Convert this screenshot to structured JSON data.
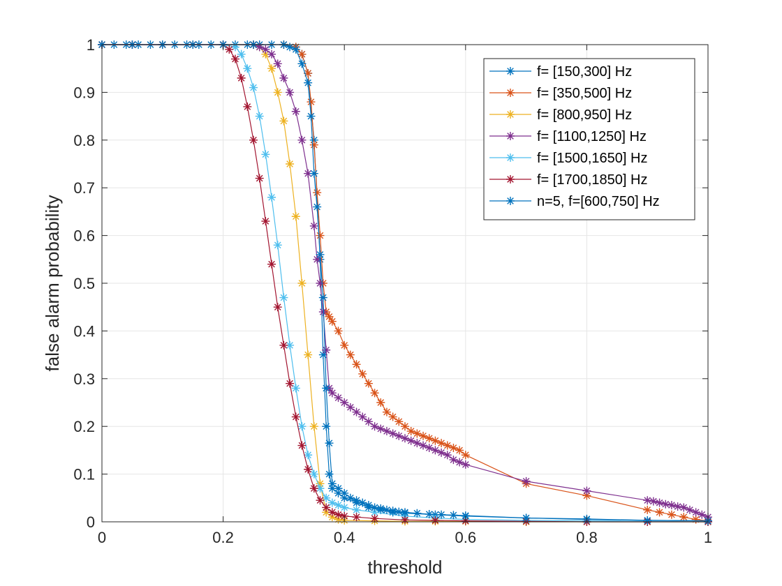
{
  "chart_data": {
    "type": "line",
    "title": "",
    "xlabel": "threshold",
    "ylabel": "false alarm probability",
    "xlim": [
      0,
      1
    ],
    "ylim": [
      0,
      1
    ],
    "xticks": [
      "0",
      "0.2",
      "0.4",
      "0.6",
      "0.8",
      "1"
    ],
    "yticks": [
      "0",
      "0.1",
      "0.2",
      "0.3",
      "0.4",
      "0.5",
      "0.6",
      "0.7",
      "0.8",
      "0.9",
      "1"
    ],
    "grid": true,
    "legend_position": "top-right",
    "marker": "asterisk",
    "series": [
      {
        "name": "f= [150,300] Hz",
        "color": "#0072BD",
        "x": [
          0,
          0.02,
          0.04,
          0.06,
          0.08,
          0.1,
          0.12,
          0.14,
          0.16,
          0.18,
          0.2,
          0.22,
          0.24,
          0.26,
          0.28,
          0.3,
          0.32,
          0.33,
          0.34,
          0.35,
          0.36,
          0.365,
          0.37,
          0.375,
          0.38,
          0.39,
          0.4,
          0.42,
          0.44,
          0.46,
          0.48,
          0.5,
          0.55,
          0.6,
          0.7,
          0.8,
          0.9,
          1.0
        ],
        "y": [
          1,
          1,
          1,
          1,
          1,
          1,
          1,
          1,
          1,
          1,
          1,
          1,
          1,
          1,
          1,
          1,
          0.995,
          0.98,
          0.94,
          0.8,
          0.55,
          0.35,
          0.2,
          0.1,
          0.07,
          0.06,
          0.05,
          0.04,
          0.03,
          0.025,
          0.02,
          0.018,
          0.015,
          0.012,
          0.008,
          0.005,
          0.003,
          0.002
        ]
      },
      {
        "name": "f= [350,500] Hz",
        "color": "#D95319",
        "x": [
          0,
          0.05,
          0.1,
          0.15,
          0.2,
          0.25,
          0.3,
          0.32,
          0.33,
          0.34,
          0.345,
          0.35,
          0.355,
          0.36,
          0.365,
          0.37,
          0.375,
          0.38,
          0.39,
          0.4,
          0.41,
          0.42,
          0.43,
          0.44,
          0.45,
          0.46,
          0.47,
          0.48,
          0.49,
          0.5,
          0.51,
          0.52,
          0.53,
          0.54,
          0.55,
          0.56,
          0.57,
          0.58,
          0.59,
          0.6,
          0.7,
          0.8,
          0.9,
          0.92,
          0.94,
          0.96,
          0.98,
          1.0
        ],
        "y": [
          1,
          1,
          1,
          1,
          1,
          1,
          1,
          0.995,
          0.98,
          0.94,
          0.88,
          0.79,
          0.69,
          0.6,
          0.5,
          0.44,
          0.43,
          0.42,
          0.4,
          0.37,
          0.35,
          0.33,
          0.31,
          0.29,
          0.27,
          0.25,
          0.23,
          0.22,
          0.21,
          0.2,
          0.19,
          0.185,
          0.18,
          0.175,
          0.17,
          0.165,
          0.16,
          0.155,
          0.15,
          0.14,
          0.08,
          0.055,
          0.025,
          0.02,
          0.015,
          0.01,
          0.005,
          0.002
        ]
      },
      {
        "name": "f= [800,950] Hz",
        "color": "#EDB120",
        "x": [
          0,
          0.05,
          0.1,
          0.15,
          0.2,
          0.25,
          0.26,
          0.27,
          0.28,
          0.29,
          0.3,
          0.31,
          0.32,
          0.33,
          0.34,
          0.35,
          0.36,
          0.37,
          0.38,
          0.39,
          0.4,
          0.45,
          0.5,
          0.55,
          0.6,
          0.7,
          0.8,
          0.9,
          1.0
        ],
        "y": [
          1,
          1,
          1,
          1,
          1,
          1,
          0.995,
          0.98,
          0.95,
          0.9,
          0.84,
          0.75,
          0.64,
          0.5,
          0.35,
          0.2,
          0.08,
          0.02,
          0.01,
          0.005,
          0.003,
          0.002,
          0.001,
          0.001,
          0.001,
          0.0,
          0.0,
          0.0,
          0.0
        ]
      },
      {
        "name": "f= [1100,1250] Hz",
        "color": "#7E2F8E",
        "x": [
          0,
          0.05,
          0.1,
          0.15,
          0.2,
          0.25,
          0.26,
          0.27,
          0.28,
          0.29,
          0.3,
          0.31,
          0.32,
          0.33,
          0.34,
          0.35,
          0.355,
          0.36,
          0.365,
          0.37,
          0.375,
          0.38,
          0.39,
          0.4,
          0.41,
          0.42,
          0.43,
          0.44,
          0.45,
          0.46,
          0.47,
          0.48,
          0.49,
          0.5,
          0.51,
          0.52,
          0.53,
          0.54,
          0.55,
          0.56,
          0.57,
          0.58,
          0.59,
          0.6,
          0.7,
          0.8,
          0.9,
          0.91,
          0.92,
          0.93,
          0.94,
          0.95,
          0.96,
          0.97,
          0.98,
          0.99,
          1.0
        ],
        "y": [
          1,
          1,
          1,
          1,
          1,
          1,
          0.995,
          0.99,
          0.98,
          0.96,
          0.93,
          0.9,
          0.86,
          0.8,
          0.73,
          0.62,
          0.55,
          0.5,
          0.44,
          0.36,
          0.28,
          0.27,
          0.26,
          0.25,
          0.24,
          0.23,
          0.22,
          0.21,
          0.2,
          0.195,
          0.19,
          0.185,
          0.18,
          0.175,
          0.17,
          0.165,
          0.16,
          0.155,
          0.15,
          0.145,
          0.14,
          0.13,
          0.125,
          0.12,
          0.085,
          0.065,
          0.045,
          0.043,
          0.04,
          0.037,
          0.035,
          0.032,
          0.03,
          0.025,
          0.02,
          0.015,
          0.01
        ]
      },
      {
        "name": "f= [1500,1650] Hz",
        "color": "#4DBEEE",
        "x": [
          0,
          0.05,
          0.1,
          0.15,
          0.2,
          0.22,
          0.23,
          0.24,
          0.25,
          0.26,
          0.27,
          0.28,
          0.29,
          0.3,
          0.31,
          0.32,
          0.33,
          0.34,
          0.35,
          0.36,
          0.37,
          0.38,
          0.39,
          0.4,
          0.42,
          0.45,
          0.5,
          0.55,
          0.6,
          0.7,
          0.8,
          0.9,
          1.0
        ],
        "y": [
          1,
          1,
          1,
          1,
          1,
          0.995,
          0.98,
          0.95,
          0.91,
          0.85,
          0.77,
          0.68,
          0.58,
          0.47,
          0.37,
          0.28,
          0.2,
          0.14,
          0.1,
          0.07,
          0.05,
          0.04,
          0.035,
          0.03,
          0.025,
          0.02,
          0.012,
          0.008,
          0.005,
          0.003,
          0.002,
          0.001,
          0.0
        ]
      },
      {
        "name": "f= [1700,1850] Hz",
        "color": "#A2142F",
        "x": [
          0,
          0.05,
          0.1,
          0.15,
          0.2,
          0.21,
          0.22,
          0.23,
          0.24,
          0.25,
          0.26,
          0.27,
          0.28,
          0.29,
          0.3,
          0.31,
          0.32,
          0.33,
          0.34,
          0.35,
          0.36,
          0.37,
          0.38,
          0.39,
          0.4,
          0.42,
          0.45,
          0.5,
          0.55,
          0.6,
          0.7,
          0.8,
          0.9,
          1.0
        ],
        "y": [
          1,
          1,
          1,
          1,
          1,
          0.99,
          0.97,
          0.93,
          0.87,
          0.8,
          0.72,
          0.63,
          0.54,
          0.45,
          0.37,
          0.29,
          0.22,
          0.16,
          0.11,
          0.07,
          0.045,
          0.03,
          0.02,
          0.015,
          0.012,
          0.01,
          0.007,
          0.004,
          0.003,
          0.002,
          0.001,
          0.0,
          0.0,
          0.0
        ]
      },
      {
        "name": "n=5, f=[600,750] Hz",
        "color": "#0072BD",
        "x": [
          0,
          0.05,
          0.1,
          0.15,
          0.2,
          0.25,
          0.3,
          0.31,
          0.32,
          0.33,
          0.34,
          0.345,
          0.35,
          0.355,
          0.36,
          0.365,
          0.37,
          0.375,
          0.38,
          0.39,
          0.4,
          0.41,
          0.42,
          0.43,
          0.44,
          0.45,
          0.46,
          0.47,
          0.48,
          0.49,
          0.5,
          0.52,
          0.54,
          0.56,
          0.58,
          0.6,
          0.7,
          0.8,
          0.9,
          1.0
        ],
        "y": [
          1,
          1,
          1,
          1,
          1,
          1,
          1,
          0.995,
          0.99,
          0.96,
          0.92,
          0.85,
          0.73,
          0.66,
          0.56,
          0.47,
          0.28,
          0.165,
          0.08,
          0.07,
          0.06,
          0.05,
          0.045,
          0.04,
          0.035,
          0.03,
          0.028,
          0.025,
          0.023,
          0.021,
          0.02,
          0.018,
          0.016,
          0.015,
          0.014,
          0.013,
          0.008,
          0.006,
          0.003,
          0.002
        ]
      }
    ]
  }
}
